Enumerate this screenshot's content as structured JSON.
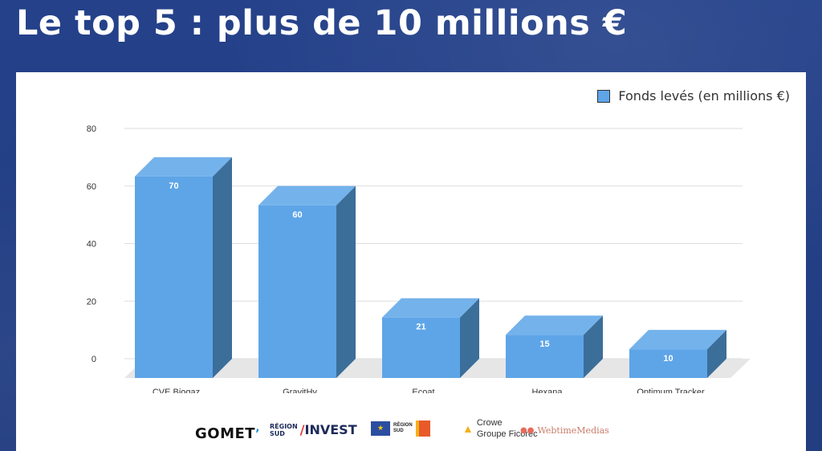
{
  "title": "Le top 5 : plus de 10 millions €",
  "legend": {
    "label": "Fonds levés (en millions €)"
  },
  "colors": {
    "bar_front": "#5ea5e8",
    "bar_top": "#74b2eb",
    "bar_side": "#3c6e9a",
    "floor": "#e6e6e6",
    "grid": "#dddddd",
    "background": "#233f83"
  },
  "chart_data": {
    "type": "bar",
    "categories": [
      "CVE Biogaz",
      "GravitHy",
      "Ecoat",
      "Hexana",
      "Optimum Tracker"
    ],
    "series": [
      {
        "name": "Fonds levés (en millions €)",
        "values": [
          70,
          60,
          21,
          15,
          10
        ]
      }
    ],
    "data_labels": [
      "70",
      "60",
      "21",
      "15",
      "10"
    ],
    "y_ticks": [
      "0",
      "20",
      "40",
      "60",
      "80"
    ],
    "ylim": [
      0,
      80
    ],
    "grid": true,
    "legend_position": "top-right",
    "style": "3d"
  },
  "logos": {
    "gomet": "GOMET",
    "gomet_accent": "’",
    "region_small_1": "RÉGION",
    "region_small_2": "SUD",
    "invest": "INVEST",
    "region_sud_1": "RÉGION",
    "region_sud_2": "SUD",
    "crowe_1": "Crowe",
    "crowe_2": "Groupe Ficorec",
    "webtime": "WebtimeMedias"
  }
}
